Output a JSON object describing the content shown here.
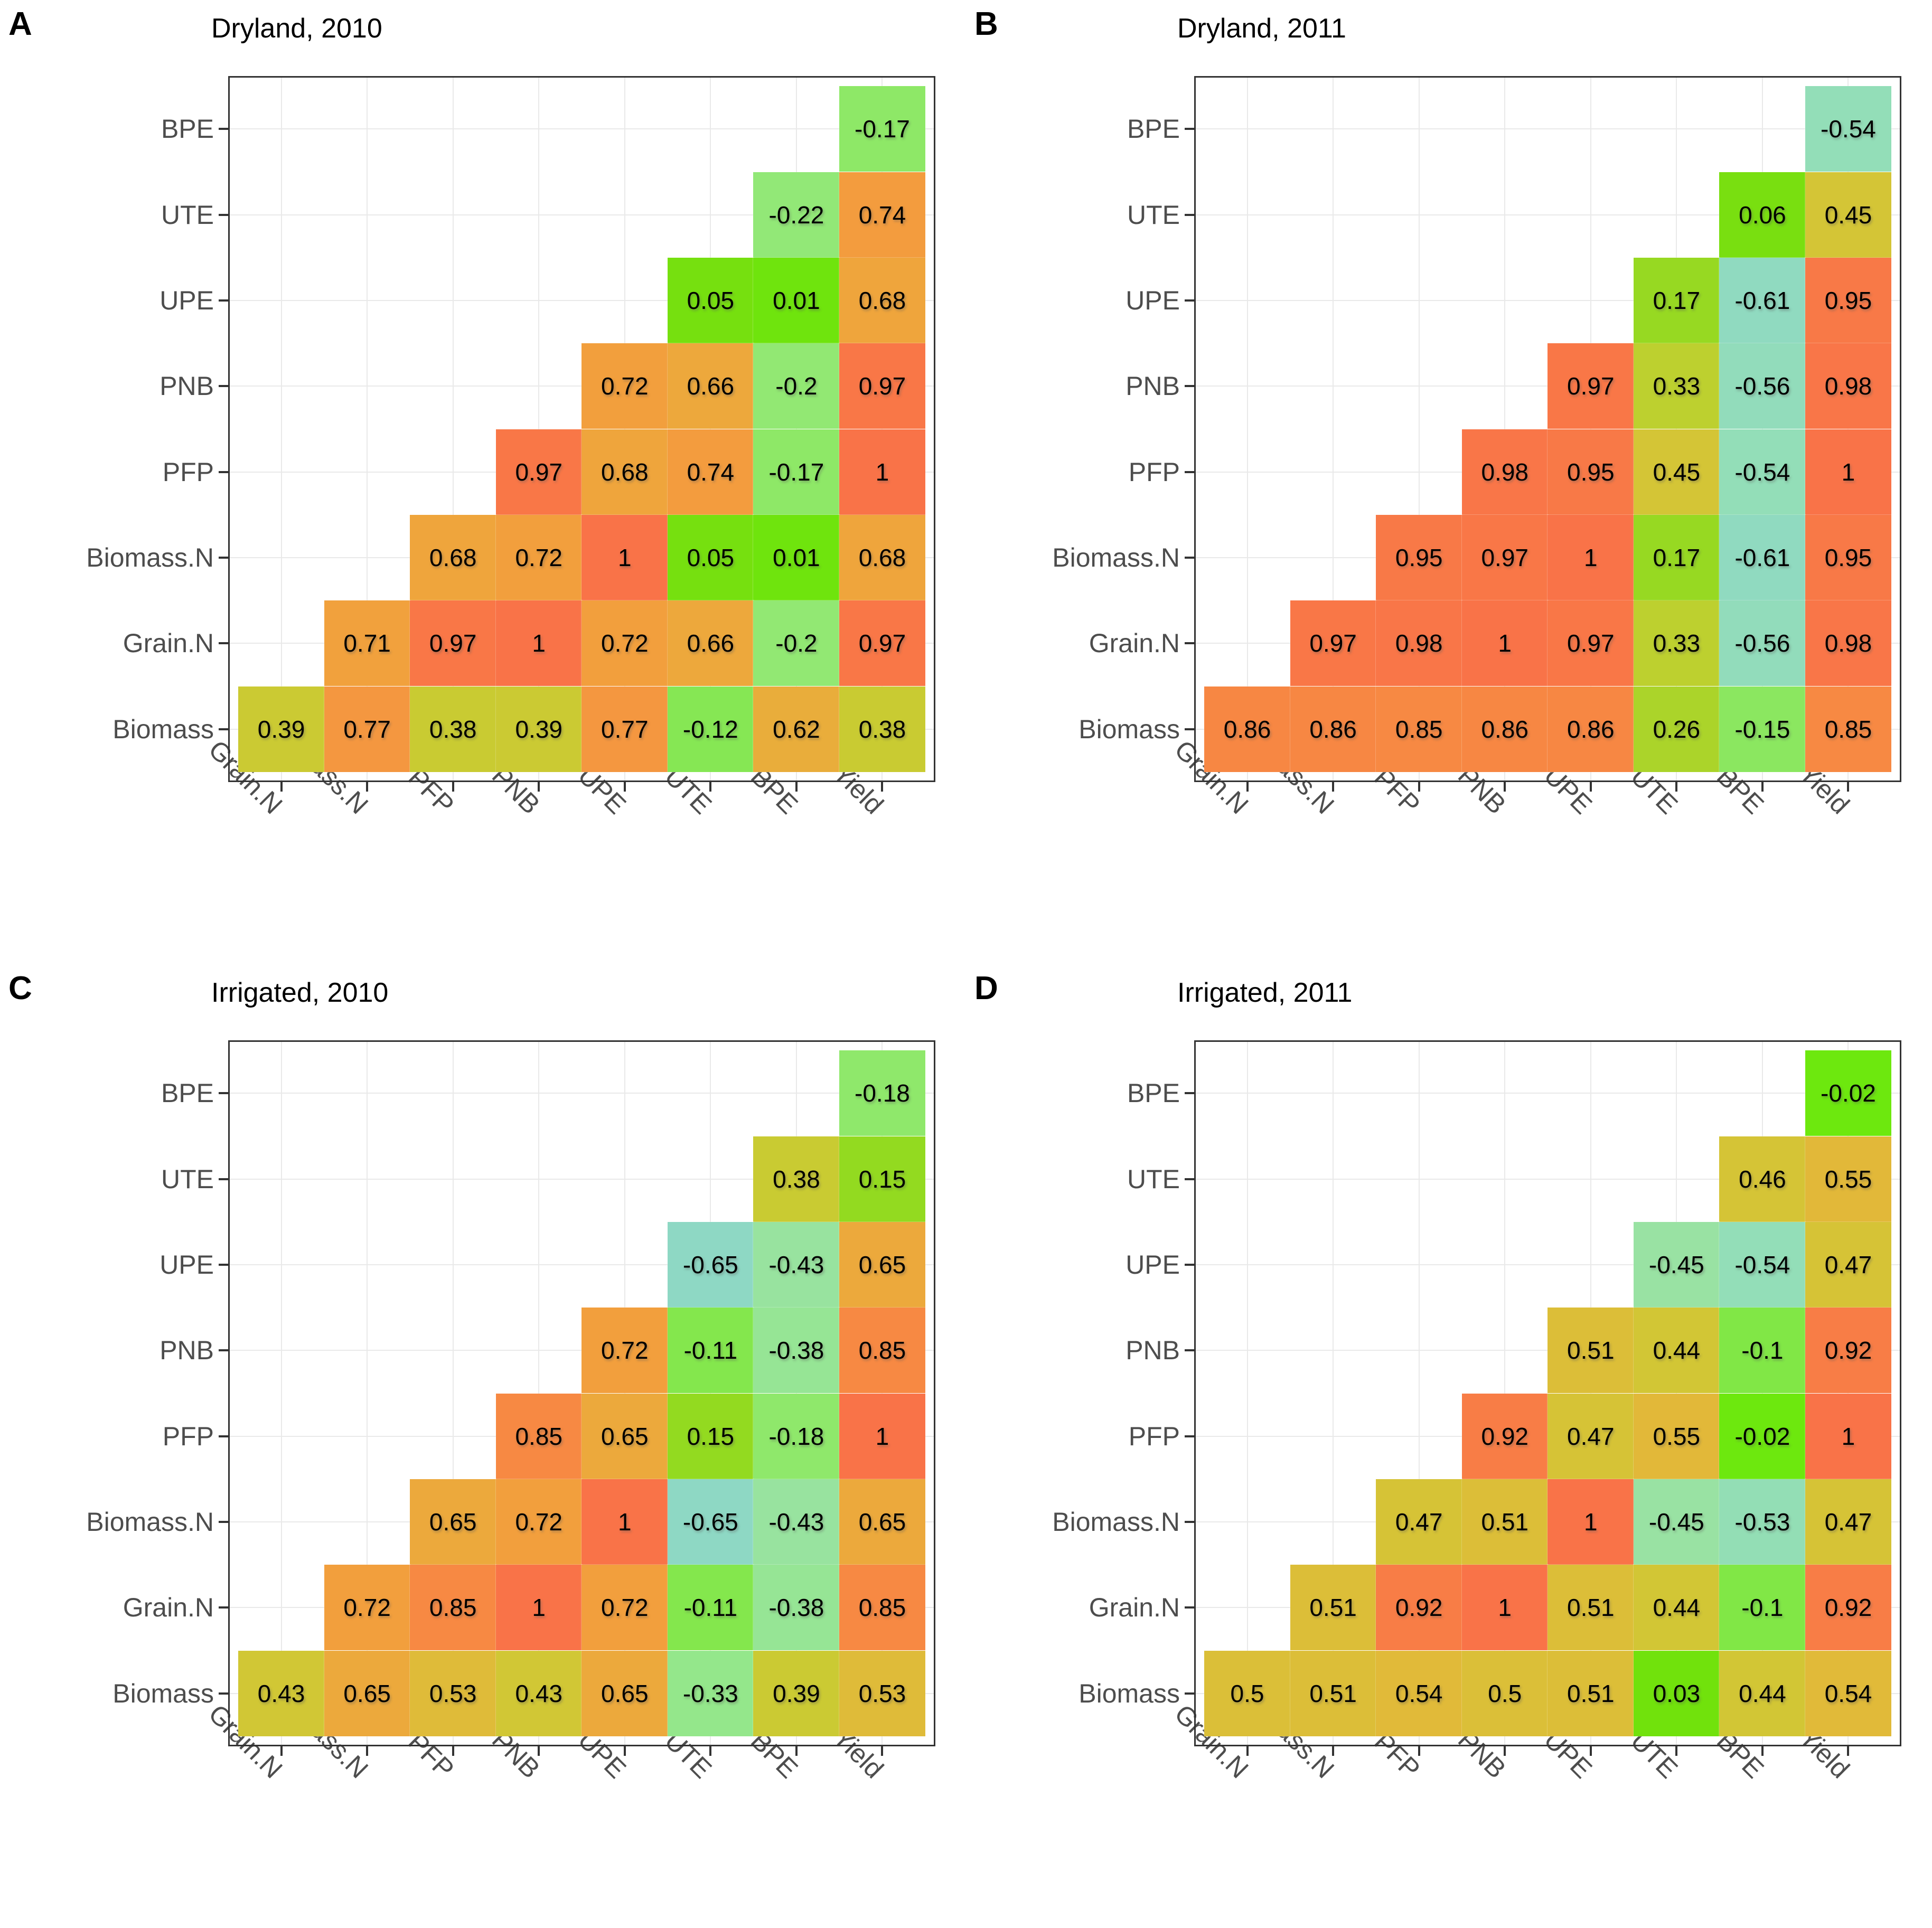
{
  "page": {
    "background": "#ffffff"
  },
  "axes": {
    "rows_top_to_bottom": [
      "BPE",
      "UTE",
      "UPE",
      "PNB",
      "PFP",
      "Biomass.N",
      "Grain.N",
      "Biomass"
    ],
    "cols_left_to_right": [
      "Grain.N",
      "Biomass.N",
      "PFP",
      "PNB",
      "UPE",
      "UTE",
      "BPE",
      "Yield"
    ]
  },
  "style": {
    "frame_color": "#333333",
    "grid_color": "#e9e9e9",
    "axis_text_color": "#4d4d4d",
    "cell_text_color": "#000000",
    "title_color": "#000000",
    "color_stops": [
      {
        "v": -0.7,
        "c": "#8cd5c9"
      },
      {
        "v": -0.55,
        "c": "#92ddba"
      },
      {
        "v": -0.45,
        "c": "#99e2a3"
      },
      {
        "v": -0.33,
        "c": "#94e78b"
      },
      {
        "v": -0.2,
        "c": "#92e873"
      },
      {
        "v": -0.12,
        "c": "#86e754"
      },
      {
        "v": -0.02,
        "c": "#6de80e"
      },
      {
        "v": 0.03,
        "c": "#71e20c"
      },
      {
        "v": 0.06,
        "c": "#79df10"
      },
      {
        "v": 0.15,
        "c": "#93da20"
      },
      {
        "v": 0.26,
        "c": "#abd42a"
      },
      {
        "v": 0.33,
        "c": "#bdd02f"
      },
      {
        "v": 0.39,
        "c": "#cbca33"
      },
      {
        "v": 0.46,
        "c": "#d5c436"
      },
      {
        "v": 0.51,
        "c": "#dcbe38"
      },
      {
        "v": 0.55,
        "c": "#e2b839"
      },
      {
        "v": 0.62,
        "c": "#e9ad3b"
      },
      {
        "v": 0.68,
        "c": "#efa53c"
      },
      {
        "v": 0.74,
        "c": "#f39c3e"
      },
      {
        "v": 0.8,
        "c": "#f59141"
      },
      {
        "v": 0.86,
        "c": "#f78743"
      },
      {
        "v": 0.92,
        "c": "#f87d46"
      },
      {
        "v": 1.0,
        "c": "#f97348"
      }
    ]
  },
  "chart_data": [
    {
      "type": "heatmap",
      "panel_label": "A",
      "title": "Dryland, 2010",
      "x_categories": [
        "Grain.N",
        "Biomass.N",
        "PFP",
        "PNB",
        "UPE",
        "UTE",
        "BPE",
        "Yield"
      ],
      "y_categories_top_to_bottom": [
        "BPE",
        "UTE",
        "UPE",
        "PNB",
        "PFP",
        "Biomass.N",
        "Grain.N",
        "Biomass"
      ],
      "values_by_row": [
        [
          null,
          null,
          null,
          null,
          null,
          null,
          null,
          -0.17
        ],
        [
          null,
          null,
          null,
          null,
          null,
          null,
          -0.22,
          0.74
        ],
        [
          null,
          null,
          null,
          null,
          null,
          0.05,
          0.01,
          0.68
        ],
        [
          null,
          null,
          null,
          null,
          0.72,
          0.66,
          -0.2,
          0.97
        ],
        [
          null,
          null,
          null,
          0.97,
          0.68,
          0.74,
          -0.17,
          1
        ],
        [
          null,
          null,
          0.68,
          0.72,
          1,
          0.05,
          0.01,
          0.68
        ],
        [
          null,
          0.71,
          0.97,
          1,
          0.72,
          0.66,
          -0.2,
          0.97
        ],
        [
          0.39,
          0.77,
          0.38,
          0.39,
          0.77,
          -0.12,
          0.62,
          0.38
        ]
      ]
    },
    {
      "type": "heatmap",
      "panel_label": "B",
      "title": "Dryland, 2011",
      "x_categories": [
        "Grain.N",
        "Biomass.N",
        "PFP",
        "PNB",
        "UPE",
        "UTE",
        "BPE",
        "Yield"
      ],
      "y_categories_top_to_bottom": [
        "BPE",
        "UTE",
        "UPE",
        "PNB",
        "PFP",
        "Biomass.N",
        "Grain.N",
        "Biomass"
      ],
      "values_by_row": [
        [
          null,
          null,
          null,
          null,
          null,
          null,
          null,
          -0.54
        ],
        [
          null,
          null,
          null,
          null,
          null,
          null,
          0.06,
          0.45
        ],
        [
          null,
          null,
          null,
          null,
          null,
          0.17,
          -0.61,
          0.95
        ],
        [
          null,
          null,
          null,
          null,
          0.97,
          0.33,
          -0.56,
          0.98
        ],
        [
          null,
          null,
          null,
          0.98,
          0.95,
          0.45,
          -0.54,
          1
        ],
        [
          null,
          null,
          0.95,
          0.97,
          1,
          0.17,
          -0.61,
          0.95
        ],
        [
          null,
          0.97,
          0.98,
          1,
          0.97,
          0.33,
          -0.56,
          0.98
        ],
        [
          0.86,
          0.86,
          0.85,
          0.86,
          0.86,
          0.26,
          -0.15,
          0.85
        ]
      ]
    },
    {
      "type": "heatmap",
      "panel_label": "C",
      "title": "Irrigated, 2010",
      "x_categories": [
        "Grain.N",
        "Biomass.N",
        "PFP",
        "PNB",
        "UPE",
        "UTE",
        "BPE",
        "Yield"
      ],
      "y_categories_top_to_bottom": [
        "BPE",
        "UTE",
        "UPE",
        "PNB",
        "PFP",
        "Biomass.N",
        "Grain.N",
        "Biomass"
      ],
      "values_by_row": [
        [
          null,
          null,
          null,
          null,
          null,
          null,
          null,
          -0.18
        ],
        [
          null,
          null,
          null,
          null,
          null,
          null,
          0.38,
          0.15
        ],
        [
          null,
          null,
          null,
          null,
          null,
          -0.65,
          -0.43,
          0.65
        ],
        [
          null,
          null,
          null,
          null,
          0.72,
          -0.11,
          -0.38,
          0.85
        ],
        [
          null,
          null,
          null,
          0.85,
          0.65,
          0.15,
          -0.18,
          1
        ],
        [
          null,
          null,
          0.65,
          0.72,
          1,
          -0.65,
          -0.43,
          0.65
        ],
        [
          null,
          0.72,
          0.85,
          1,
          0.72,
          -0.11,
          -0.38,
          0.85
        ],
        [
          0.43,
          0.65,
          0.53,
          0.43,
          0.65,
          -0.33,
          0.39,
          0.53
        ]
      ]
    },
    {
      "type": "heatmap",
      "panel_label": "D",
      "title": "Irrigated, 2011",
      "x_categories": [
        "Grain.N",
        "Biomass.N",
        "PFP",
        "PNB",
        "UPE",
        "UTE",
        "BPE",
        "Yield"
      ],
      "y_categories_top_to_bottom": [
        "BPE",
        "UTE",
        "UPE",
        "PNB",
        "PFP",
        "Biomass.N",
        "Grain.N",
        "Biomass"
      ],
      "values_by_row": [
        [
          null,
          null,
          null,
          null,
          null,
          null,
          null,
          -0.02
        ],
        [
          null,
          null,
          null,
          null,
          null,
          null,
          0.46,
          0.55
        ],
        [
          null,
          null,
          null,
          null,
          null,
          -0.45,
          -0.54,
          0.47
        ],
        [
          null,
          null,
          null,
          null,
          0.51,
          0.44,
          -0.1,
          0.92
        ],
        [
          null,
          null,
          null,
          0.92,
          0.47,
          0.55,
          -0.02,
          1
        ],
        [
          null,
          null,
          0.47,
          0.51,
          1,
          -0.45,
          -0.53,
          0.47
        ],
        [
          null,
          0.51,
          0.92,
          1,
          0.51,
          0.44,
          -0.1,
          0.92
        ],
        [
          0.5,
          0.51,
          0.54,
          0.5,
          0.51,
          0.03,
          0.44,
          0.54
        ]
      ]
    }
  ]
}
